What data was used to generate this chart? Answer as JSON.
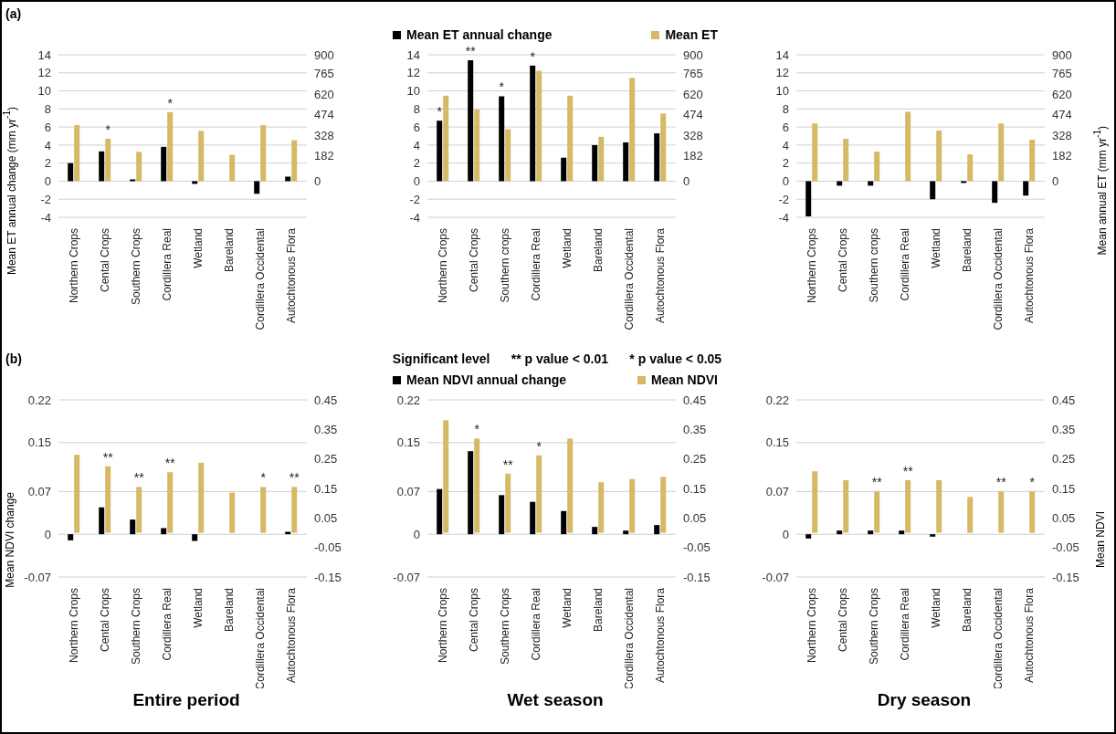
{
  "chart_data": [
    {
      "type": "bar",
      "ylabel": "Mean ET annual change (mm yr$^{-1}$)",
      "categories": [
        "Northern Crops",
        "Cental Crops",
        "Southern Crops",
        "Cordillera Real",
        "Wetland",
        "Bareland",
        "Cordillera Occidental",
        "Autochtonous Flora"
      ],
      "series": [
        {
          "color": "#000000",
          "values": [
            2.0,
            3.3,
            0.2,
            3.8,
            -0.3,
            0,
            -1.4,
            0.5
          ]
        },
        {
          "color": "#d6b962",
          "axis": "y2",
          "values": [
            399,
            302,
            209,
            492,
            358,
            188,
            399,
            292
          ],
          "value_labels": [
            null,
            "*",
            null,
            "*",
            null,
            null,
            null,
            null
          ]
        }
      ],
      "ylim": [
        -4,
        14
      ],
      "yticks": [
        -4,
        -2,
        0,
        2,
        4,
        6,
        8,
        10,
        12,
        14
      ],
      "y2lim": [
        -257,
        900
      ],
      "y2ticks": [
        0,
        182,
        328,
        474,
        620,
        765,
        900
      ],
      "grid": "y",
      "annotations": [
        "(a)"
      ]
    },
    {
      "type": "bar",
      "categories": [
        "Northern Crops",
        "Cental Crops",
        "Southern crops",
        "Cordillera Real",
        "Wetland",
        "Bareland",
        "Cordillera Occidental",
        "Autochtonous Flora"
      ],
      "series": [
        {
          "name": "Mean ET annual change",
          "color": "#000000",
          "values": [
            6.7,
            13.4,
            9.4,
            12.8,
            2.6,
            4.0,
            4.3,
            5.3
          ],
          "value_labels": [
            "*",
            "**",
            "*",
            "*",
            null,
            null,
            null,
            null
          ]
        },
        {
          "name": "Mean ET",
          "color": "#d6b962",
          "axis": "y2",
          "values": [
            609,
            511,
            370,
            786,
            609,
            316,
            735,
            482
          ]
        }
      ],
      "ylim": [
        -4,
        14
      ],
      "yticks": [
        -4,
        -2,
        0,
        2,
        4,
        6,
        8,
        10,
        12,
        14
      ],
      "y2lim": [
        -257,
        900
      ],
      "y2ticks": [
        0,
        182,
        328,
        474,
        620,
        765,
        900
      ],
      "grid": "y",
      "legend": "top"
    },
    {
      "type": "bar",
      "y2label": "Mean annual ET  (mm yr$^{-1}$)",
      "categories": [
        "Northern Crops",
        "Cental Crops",
        "Southern crops",
        "Cordillera Real",
        "Wetland",
        "Bareland",
        "Cordillera Occidental",
        "Autochtonous Flora"
      ],
      "series": [
        {
          "color": "#000000",
          "values": [
            -3.9,
            -0.5,
            -0.5,
            0,
            -2.0,
            -0.2,
            -2.4,
            -1.6
          ]
        },
        {
          "color": "#d6b962",
          "axis": "y2",
          "values": [
            411,
            302,
            210,
            494,
            360,
            191,
            411,
            295
          ]
        }
      ],
      "ylim": [
        -4,
        14
      ],
      "yticks": [
        -4,
        -2,
        0,
        2,
        4,
        6,
        8,
        10,
        12,
        14
      ],
      "y2lim": [
        -257,
        900
      ],
      "y2ticks": [
        0,
        182,
        328,
        474,
        620,
        765,
        900
      ],
      "grid": "y"
    },
    {
      "type": "bar",
      "ylabel": "Mean NDVI change",
      "xlabel": "Entire period",
      "categories": [
        "Northern Crops",
        "Cental Crops",
        "Southern Crops",
        "Cordillera Real",
        "Wetland",
        "Bareland",
        "Cordillera Occidental",
        "Autochtonous Flora"
      ],
      "series": [
        {
          "color": "#000000",
          "values": [
            -0.01,
            0.044,
            0.024,
            0.01,
            -0.011,
            0,
            0,
            0.004
          ]
        },
        {
          "color": "#d6b962",
          "axis": "y2",
          "values": [
            0.264,
            0.225,
            0.155,
            0.205,
            0.237,
            0.136,
            0.155,
            0.155
          ],
          "value_labels": [
            null,
            "**",
            "**",
            "**",
            null,
            null,
            "*",
            "**"
          ]
        }
      ],
      "ylim": [
        -0.07,
        0.22
      ],
      "yticks": [
        -0.07,
        0,
        0.07,
        0.15,
        0.22
      ],
      "y2lim": [
        -0.15,
        0.45
      ],
      "y2ticks": [
        -0.15,
        -0.05,
        0.05,
        0.15,
        0.25,
        0.35,
        0.45
      ],
      "grid": "y",
      "annotations": [
        "(b)"
      ]
    },
    {
      "type": "bar",
      "xlabel": "Wet season",
      "categories": [
        "Northern Crops",
        "Cental Crops",
        "Southern Crops",
        "Cordillera Real",
        "Wetland",
        "Bareland",
        "Cordillera Occidental",
        "Autochtonous Flora"
      ],
      "series": [
        {
          "name": "Mean NDVI annual change",
          "color": "#000000",
          "values": [
            0.074,
            0.136,
            0.064,
            0.053,
            0.038,
            0.012,
            0.006,
            0.015
          ]
        },
        {
          "name": "Mean NDVI",
          "color": "#d6b962",
          "axis": "y2",
          "values": [
            0.381,
            0.319,
            0.2,
            0.262,
            0.319,
            0.171,
            0.182,
            0.189
          ],
          "value_labels": [
            null,
            "*",
            "**",
            "*",
            null,
            null,
            null,
            null
          ]
        }
      ],
      "ylim": [
        -0.07,
        0.22
      ],
      "yticks": [
        -0.07,
        0,
        0.07,
        0.15,
        0.22
      ],
      "y2lim": [
        -0.15,
        0.45
      ],
      "y2ticks": [
        -0.15,
        -0.05,
        0.05,
        0.15,
        0.25,
        0.35,
        0.45
      ],
      "grid": "y",
      "legend": "top",
      "annotations": [
        "Significant level      ** p value < 0.01      * p value < 0.05"
      ]
    },
    {
      "type": "bar",
      "xlabel": "Dry season",
      "y2label": "Mean NDVI",
      "categories": [
        "Northern Crops",
        "Cental Crops",
        "Southern Crops",
        "Cordillera Real",
        "Wetland",
        "Bareland",
        "Cordillera Occidental",
        "Autochtonous Flora"
      ],
      "series": [
        {
          "color": "#000000",
          "values": [
            -0.007,
            0.006,
            0.006,
            0.006,
            -0.004,
            0,
            0,
            0
          ]
        },
        {
          "color": "#d6b962",
          "axis": "y2",
          "values": [
            0.208,
            0.178,
            0.14,
            0.178,
            0.178,
            0.121,
            0.14,
            0.14
          ],
          "value_labels": [
            null,
            null,
            "**",
            "**",
            null,
            null,
            "**",
            "*"
          ]
        }
      ],
      "ylim": [
        -0.07,
        0.22
      ],
      "yticks": [
        -0.07,
        0,
        0.07,
        0.15,
        0.22
      ],
      "y2lim": [
        -0.15,
        0.45
      ],
      "y2ticks": [
        -0.15,
        -0.05,
        0.05,
        0.15,
        0.25,
        0.35,
        0.45
      ],
      "grid": "y"
    }
  ]
}
